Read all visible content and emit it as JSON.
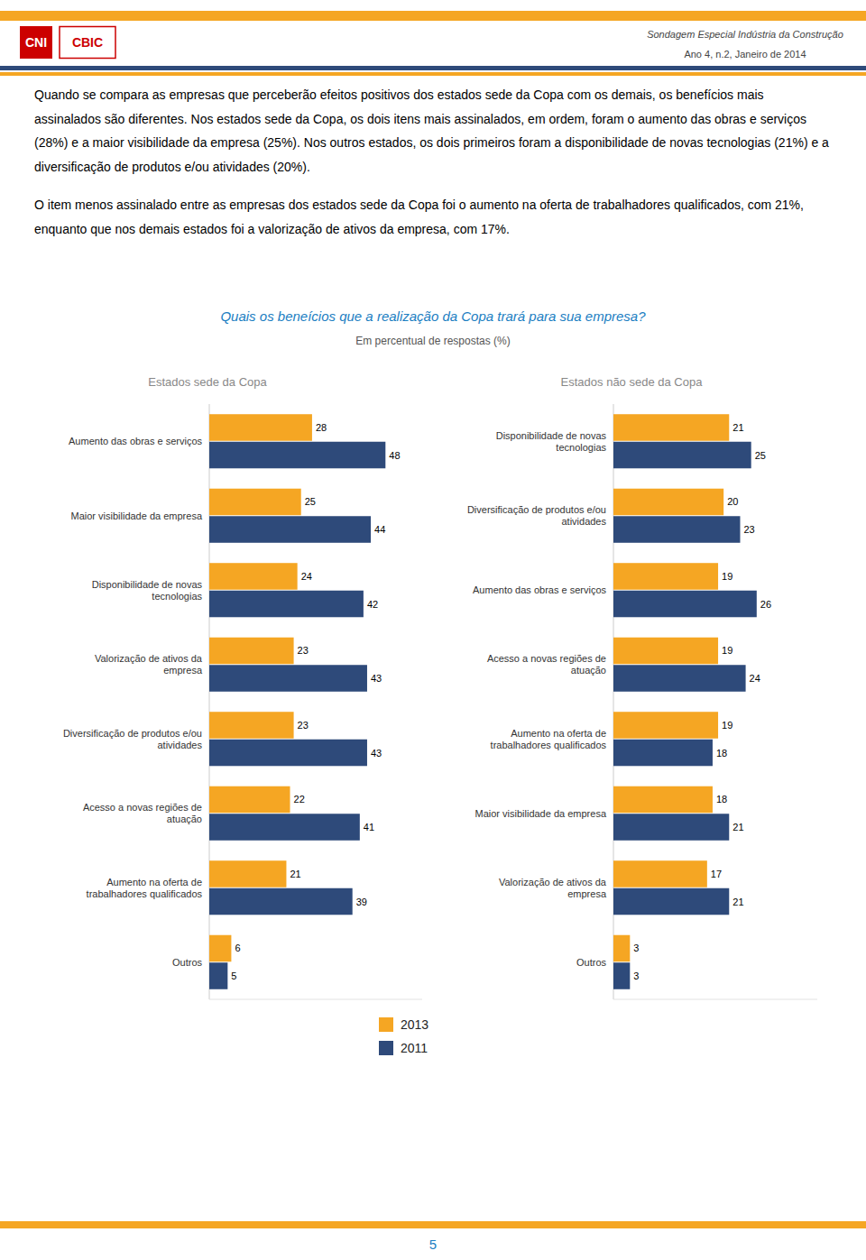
{
  "logos": [
    "CNI",
    "CBIC"
  ],
  "header": [
    "Sondagem Especial Indústria da Construção",
    "Ano 4, n.2, Janeiro de 2014"
  ],
  "paragraphs": [
    "Quando se compara as empresas que perceberão efeitos positivos dos estados sede da Copa com os demais, os benefícios mais assinalados são diferentes. Nos estados sede da Copa, os dois itens mais assinalados, em ordem, foram o aumento das obras e serviços (28%) e a maior visibilidade da empresa (25%). Nos outros estados, os dois primeiros foram a disponibilidade de novas tecnologias (21%) e a diversificação de produtos e/ou atividades (20%).",
    "O item menos assinalado entre as empresas dos estados sede da Copa foi o aumento na oferta de trabalhadores qualificados, com 21%, enquanto que nos demais estados foi a valorização de ativos da empresa, com 17%."
  ],
  "title": "Quais os beneícios que a realização da Copa trará para sua empresa?",
  "subtitle": "Em percentual de respostas (%)",
  "page_number": "5",
  "chart_data": [
    {
      "type": "bar",
      "orientation": "horizontal",
      "title": "Estados sede da Copa",
      "categories": [
        "Aumento das obras e serviços",
        "Maior visibilidade da empresa",
        "Disponibilidade de novas\ntecnologias",
        "Valorização de ativos da\nempresa",
        "Diversificação de produtos e/ou\natividades",
        "Acesso a novas regiões de\natuação",
        "Aumento na oferta de\ntrabalhadores qualificados",
        "Outros"
      ],
      "series": [
        {
          "name": "2013",
          "color": "#F5A623",
          "values": [
            28,
            25,
            24,
            23,
            23,
            22,
            21,
            6
          ]
        },
        {
          "name": "2011",
          "color": "#2E4A7A",
          "values": [
            48,
            44,
            42,
            43,
            43,
            41,
            39,
            5
          ]
        }
      ],
      "xlim": [
        0,
        58
      ],
      "data_labels": true,
      "tick_labels": "y",
      "legend": "bottom"
    },
    {
      "type": "bar",
      "orientation": "horizontal",
      "title": "Estados não  sede da Copa",
      "categories": [
        "Disponibilidade de novas\ntecnologias",
        "Diversificação de produtos e/ou\natividades",
        "Aumento das obras e serviços",
        "Acesso a novas regiões de\natuação",
        "Aumento na oferta de\ntrabalhadores qualificados",
        "Maior visibilidade da empresa",
        "Valorização de ativos da\nempresa",
        "Outros"
      ],
      "series": [
        {
          "name": "2013",
          "color": "#F5A623",
          "values": [
            21,
            20,
            19,
            19,
            19,
            18,
            17,
            3
          ]
        },
        {
          "name": "2011",
          "color": "#2E4A7A",
          "values": [
            25,
            23,
            26,
            24,
            18,
            21,
            21,
            3
          ]
        }
      ],
      "xlim": [
        0,
        37
      ],
      "data_labels": true,
      "tick_labels": "y"
    }
  ]
}
